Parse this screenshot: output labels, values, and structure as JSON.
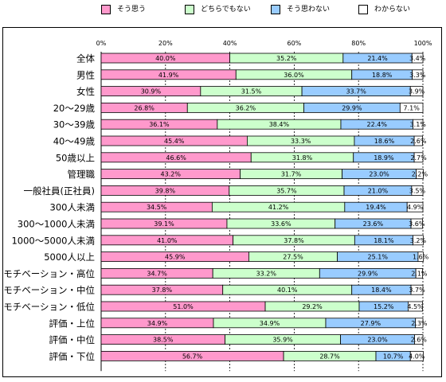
{
  "legend": [
    {
      "label": "そう思う",
      "color": "#ff99cc"
    },
    {
      "label": "どちらでもない",
      "color": "#ccffcc"
    },
    {
      "label": "そう思わない",
      "color": "#99ccff"
    },
    {
      "label": "わからない",
      "color": "#ffffff"
    }
  ],
  "chart_data": {
    "type": "bar",
    "orientation": "horizontal",
    "stacked": true,
    "title": "",
    "xlabel": "",
    "ylabel": "",
    "xlim": [
      0,
      100
    ],
    "x_ticks": [
      "0%",
      "20%",
      "40%",
      "60%",
      "80%",
      "100%"
    ],
    "grid": "vertical dashed",
    "legend_position": "top",
    "categories": [
      "全体",
      "男性",
      "女性",
      "20～29歳",
      "30～39歳",
      "40～49歳",
      "50歳以上",
      "管理職",
      "一般社員(正社員)",
      "300人未満",
      "300～1000人未満",
      "1000～5000人未満",
      "5000人以上",
      "モチベーション・高位",
      "モチベーション・中位",
      "モチベーション・低位",
      "評価・上位",
      "評価・中位",
      "評価・下位"
    ],
    "series": [
      {
        "name": "そう思う",
        "color": "#ff99cc",
        "values": [
          40.0,
          41.9,
          30.9,
          26.8,
          36.1,
          45.4,
          46.6,
          43.2,
          39.8,
          34.5,
          39.1,
          41.0,
          45.9,
          34.7,
          37.8,
          51.0,
          34.9,
          38.5,
          56.7
        ],
        "labels": [
          "40.0%",
          "41.9%",
          "30.9%",
          "26.8%",
          "36.1%",
          "45.4%",
          "46.6%",
          "43.2%",
          "39.8%",
          "34.5%",
          "39.1%",
          "41.0%",
          "45.9%",
          "34.7%",
          "37.8%",
          "51.0%",
          "34.9%",
          "38.5%",
          "56.7%"
        ]
      },
      {
        "name": "どちらでもない",
        "color": "#ccffcc",
        "values": [
          35.2,
          36.0,
          31.5,
          36.2,
          38.4,
          33.3,
          31.8,
          31.7,
          35.7,
          41.2,
          33.6,
          37.8,
          27.5,
          33.2,
          40.1,
          29.2,
          34.9,
          35.9,
          28.7
        ],
        "labels": [
          "35.2%",
          "36.0%",
          "31.5%",
          "36.2%",
          "38.4%",
          "33.3%",
          "31.8%",
          "31.7%",
          "35.7%",
          "41.2%",
          "33.6%",
          "37.8%",
          "27.5%",
          "33.2%",
          "40.1%",
          "29.2%",
          "34.9%",
          "35.9%",
          "28.7%"
        ]
      },
      {
        "name": "そう思わない",
        "color": "#99ccff",
        "values": [
          21.4,
          18.8,
          33.7,
          29.9,
          22.4,
          18.6,
          18.9,
          23.0,
          21.0,
          19.4,
          23.6,
          18.1,
          25.1,
          29.9,
          18.4,
          15.2,
          27.9,
          23.0,
          10.7
        ],
        "labels": [
          "21.4%",
          "18.8%",
          "33.7%",
          "29.9%",
          "22.4%",
          "18.6%",
          "18.9%",
          "23.0%",
          "21.0%",
          "19.4%",
          "23.6%",
          "18.1%",
          "25.1%",
          "29.9%",
          "18.4%",
          "15.2%",
          "27.9%",
          "23.0%",
          "10.7%"
        ]
      },
      {
        "name": "わからない",
        "color": "#ffffff",
        "values": [
          3.4,
          3.3,
          3.9,
          7.1,
          3.1,
          2.6,
          2.7,
          2.2,
          3.5,
          4.9,
          3.6,
          3.2,
          1.6,
          2.1,
          3.7,
          4.5,
          2.3,
          2.6,
          4.0
        ],
        "labels": [
          "3.4%",
          "3.3%",
          "3.9%",
          "7.1%",
          "3.1%",
          "2.6%",
          "2.7%",
          "2.2%",
          "3.5%",
          "4.9%",
          "3.6%",
          "3.2%",
          "1.6%",
          "2.1%",
          "3.7%",
          "4.5%",
          "2.3%",
          "2.6%",
          "4.0%"
        ]
      }
    ]
  }
}
